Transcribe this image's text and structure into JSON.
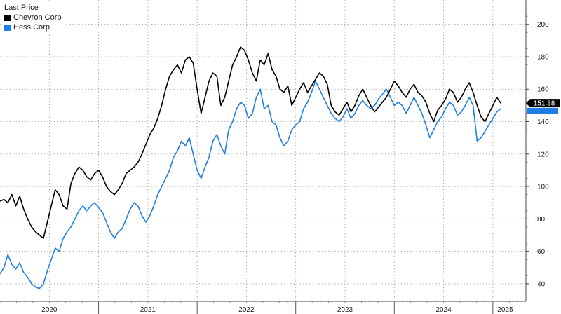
{
  "chart_data": {
    "type": "line",
    "legend_title": "Last Price",
    "legend_position": "top-left",
    "grid": true,
    "y_axis_side": "right",
    "ylim": [
      30,
      215
    ],
    "y_ticks": [
      40,
      60,
      80,
      100,
      120,
      140,
      160,
      180,
      200
    ],
    "x_range": [
      2020.0,
      2025.25
    ],
    "x_tick_labels": [
      "2020",
      "2021",
      "2022",
      "2023",
      "2024",
      "2025"
    ],
    "last_value_label": "151.38",
    "series": [
      {
        "name": "Chevron Corp",
        "color": "#000000",
        "x": [
          2020.0,
          2020.04,
          2020.08,
          2020.12,
          2020.16,
          2020.2,
          2020.24,
          2020.28,
          2020.32,
          2020.36,
          2020.4,
          2020.44,
          2020.48,
          2020.52,
          2020.56,
          2020.6,
          2020.64,
          2020.68,
          2020.72,
          2020.76,
          2020.8,
          2020.84,
          2020.88,
          2020.92,
          2020.96,
          2021.0,
          2021.04,
          2021.08,
          2021.12,
          2021.16,
          2021.2,
          2021.24,
          2021.28,
          2021.32,
          2021.36,
          2021.4,
          2021.44,
          2021.48,
          2021.52,
          2021.56,
          2021.6,
          2021.64,
          2021.68,
          2021.72,
          2021.76,
          2021.8,
          2021.84,
          2021.88,
          2021.92,
          2021.96,
          2022.0,
          2022.04,
          2022.08,
          2022.12,
          2022.16,
          2022.2,
          2022.24,
          2022.28,
          2022.32,
          2022.36,
          2022.4,
          2022.44,
          2022.48,
          2022.52,
          2022.56,
          2022.6,
          2022.64,
          2022.68,
          2022.72,
          2022.76,
          2022.8,
          2022.84,
          2022.88,
          2022.92,
          2022.96,
          2023.0,
          2023.04,
          2023.08,
          2023.12,
          2023.16,
          2023.2,
          2023.24,
          2023.28,
          2023.32,
          2023.36,
          2023.4,
          2023.44,
          2023.48,
          2023.52,
          2023.56,
          2023.6,
          2023.64,
          2023.68,
          2023.72,
          2023.76,
          2023.8,
          2023.84,
          2023.88,
          2023.92,
          2023.96,
          2024.0,
          2024.04,
          2024.08,
          2024.12,
          2024.16,
          2024.2,
          2024.24,
          2024.28,
          2024.32,
          2024.36,
          2024.4,
          2024.44,
          2024.48,
          2024.52,
          2024.56,
          2024.6,
          2024.64,
          2024.68,
          2024.72,
          2024.76,
          2024.8,
          2024.84,
          2024.88,
          2024.92,
          2024.96,
          2025.0,
          2025.04,
          2025.08
        ],
        "y": [
          91,
          92,
          90,
          95,
          88,
          94,
          86,
          80,
          75,
          72,
          70,
          68,
          78,
          88,
          98,
          95,
          88,
          86,
          102,
          108,
          112,
          110,
          106,
          104,
          108,
          110,
          106,
          100,
          97,
          95,
          98,
          102,
          108,
          110,
          112,
          115,
          120,
          126,
          132,
          136,
          142,
          150,
          160,
          168,
          172,
          175,
          170,
          178,
          180,
          176,
          160,
          145,
          155,
          165,
          170,
          168,
          150,
          155,
          165,
          175,
          180,
          186,
          184,
          178,
          170,
          165,
          178,
          175,
          182,
          172,
          168,
          160,
          158,
          162,
          150,
          155,
          160,
          164,
          158,
          162,
          166,
          170,
          168,
          163,
          150,
          146,
          144,
          148,
          152,
          146,
          150,
          156,
          160,
          155,
          150,
          146,
          149,
          152,
          155,
          160,
          165,
          162,
          158,
          155,
          160,
          163,
          158,
          156,
          152,
          145,
          140,
          147,
          150,
          154,
          160,
          158,
          152,
          155,
          160,
          164,
          158,
          150,
          143,
          140,
          145,
          150,
          155,
          151.38
        ]
      },
      {
        "name": "Hess Corp",
        "color": "#1f7fe6",
        "x": [
          2020.0,
          2020.04,
          2020.08,
          2020.12,
          2020.16,
          2020.2,
          2020.24,
          2020.28,
          2020.32,
          2020.36,
          2020.4,
          2020.44,
          2020.48,
          2020.52,
          2020.56,
          2020.6,
          2020.64,
          2020.68,
          2020.72,
          2020.76,
          2020.8,
          2020.84,
          2020.88,
          2020.92,
          2020.96,
          2021.0,
          2021.04,
          2021.08,
          2021.12,
          2021.16,
          2021.2,
          2021.24,
          2021.28,
          2021.32,
          2021.36,
          2021.4,
          2021.44,
          2021.48,
          2021.52,
          2021.56,
          2021.6,
          2021.64,
          2021.68,
          2021.72,
          2021.76,
          2021.8,
          2021.84,
          2021.88,
          2021.92,
          2021.96,
          2022.0,
          2022.04,
          2022.08,
          2022.12,
          2022.16,
          2022.2,
          2022.24,
          2022.28,
          2022.32,
          2022.36,
          2022.4,
          2022.44,
          2022.48,
          2022.52,
          2022.56,
          2022.6,
          2022.64,
          2022.68,
          2022.72,
          2022.76,
          2022.8,
          2022.84,
          2022.88,
          2022.92,
          2022.96,
          2023.0,
          2023.04,
          2023.08,
          2023.12,
          2023.16,
          2023.2,
          2023.24,
          2023.28,
          2023.32,
          2023.36,
          2023.4,
          2023.44,
          2023.48,
          2023.52,
          2023.56,
          2023.6,
          2023.64,
          2023.68,
          2023.72,
          2023.76,
          2023.8,
          2023.84,
          2023.88,
          2023.92,
          2023.96,
          2024.0,
          2024.04,
          2024.08,
          2024.12,
          2024.16,
          2024.2,
          2024.24,
          2024.28,
          2024.32,
          2024.36,
          2024.4,
          2024.44,
          2024.48,
          2024.52,
          2024.56,
          2024.6,
          2024.64,
          2024.68,
          2024.72,
          2024.76,
          2024.8,
          2024.84,
          2024.88,
          2024.92,
          2024.96,
          2025.0,
          2025.04,
          2025.08
        ],
        "y": [
          46,
          50,
          58,
          52,
          49,
          53,
          47,
          44,
          40,
          38,
          37,
          40,
          48,
          55,
          62,
          60,
          68,
          72,
          75,
          80,
          85,
          88,
          85,
          88,
          90,
          87,
          84,
          78,
          72,
          68,
          72,
          74,
          80,
          86,
          90,
          88,
          82,
          78,
          82,
          88,
          95,
          100,
          105,
          110,
          118,
          122,
          128,
          125,
          130,
          120,
          110,
          105,
          112,
          118,
          128,
          132,
          125,
          120,
          135,
          140,
          148,
          152,
          150,
          142,
          145,
          155,
          160,
          148,
          150,
          140,
          138,
          130,
          125,
          128,
          135,
          138,
          140,
          148,
          152,
          158,
          165,
          160,
          155,
          150,
          145,
          142,
          140,
          143,
          148,
          142,
          145,
          150,
          153,
          150,
          148,
          150,
          154,
          157,
          160,
          155,
          150,
          152,
          150,
          145,
          150,
          155,
          150,
          145,
          138,
          130,
          135,
          140,
          143,
          148,
          152,
          150,
          144,
          146,
          150,
          155,
          150,
          128,
          130,
          134,
          138,
          142,
          146,
          148
        ]
      }
    ]
  }
}
